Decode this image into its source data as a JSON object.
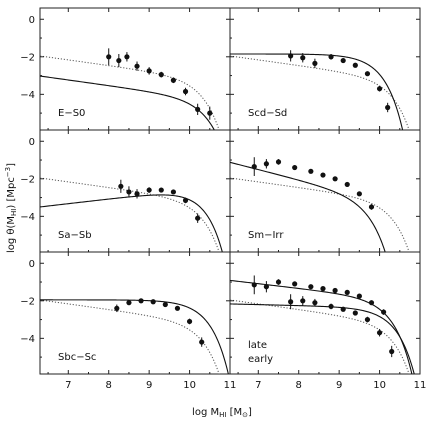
{
  "figure": {
    "xlabel": "log M",
    "xlabel_sub": "HI",
    "xlabel_unit_open": " [M",
    "xlabel_unit_sub": "⊙",
    "xlabel_unit_close": "]",
    "ylabel": "log θ(M",
    "ylabel_sub": "HI",
    "ylabel_rest": ") [Mpc",
    "ylabel_sup": "−3",
    "ylabel_close": "]"
  },
  "chart_data": [
    {
      "type": "scatter",
      "panel_label": "E−S0",
      "xlim": [
        6.3,
        11
      ],
      "ylim": [
        -5.9,
        0.6
      ],
      "xticks": [
        "7",
        "8",
        "9",
        "10",
        "11"
      ],
      "yticks": [
        "0",
        "−2",
        "−4"
      ],
      "points": [
        {
          "x": 8.0,
          "y": -2.0,
          "err": 0.45
        },
        {
          "x": 8.25,
          "y": -2.2,
          "err": 0.35
        },
        {
          "x": 8.45,
          "y": -2.0,
          "err": 0.25
        },
        {
          "x": 8.7,
          "y": -2.5,
          "err": 0.25
        },
        {
          "x": 9.0,
          "y": -2.75,
          "err": 0.2
        },
        {
          "x": 9.3,
          "y": -2.95,
          "err": 0.15
        },
        {
          "x": 9.6,
          "y": -3.25,
          "err": 0.15
        },
        {
          "x": 9.9,
          "y": -3.85,
          "err": 0.2
        },
        {
          "x": 10.2,
          "y": -4.8,
          "err": 0.3
        },
        {
          "x": 10.5,
          "y": -5.0,
          "err": 0.35
        }
      ],
      "fit": {
        "alpha": -1.3,
        "logphi": -4.15,
        "logm": 10.05,
        "xmin": 6.3,
        "xmax": 11
      },
      "reference": {
        "alpha": -1.3,
        "logphi": -3.05,
        "logm": 9.95,
        "xmin": 6.3,
        "xmax": 11
      }
    },
    {
      "type": "scatter",
      "panel_label": "Scd−Sd",
      "xlim": [
        6.3,
        11
      ],
      "ylim": [
        -5.9,
        0.6
      ],
      "xticks": [
        "7",
        "8",
        "9",
        "10",
        "11"
      ],
      "yticks": [
        "0",
        "−2",
        "−4"
      ],
      "points": [
        {
          "x": 7.8,
          "y": -1.95,
          "err": 0.3
        },
        {
          "x": 8.1,
          "y": -2.05,
          "err": 0.25
        },
        {
          "x": 8.4,
          "y": -2.35,
          "err": 0.25
        },
        {
          "x": 8.8,
          "y": -2.0,
          "err": 0.15
        },
        {
          "x": 9.1,
          "y": -2.2,
          "err": 0.12
        },
        {
          "x": 9.4,
          "y": -2.45,
          "err": 0.1
        },
        {
          "x": 9.7,
          "y": -2.9,
          "err": 0.12
        },
        {
          "x": 10.0,
          "y": -3.7,
          "err": 0.15
        },
        {
          "x": 10.2,
          "y": -4.7,
          "err": 0.25
        }
      ],
      "fit": {
        "alpha": -1.0,
        "logphi": -1.85,
        "logm": 9.6,
        "xmin": 6.3,
        "xmax": 11
      },
      "reference": {
        "alpha": -1.3,
        "logphi": -3.05,
        "logm": 9.95,
        "xmin": 6.3,
        "xmax": 11
      }
    },
    {
      "type": "scatter",
      "panel_label": "Sa−Sb",
      "xlim": [
        6.3,
        11
      ],
      "ylim": [
        -5.9,
        0.6
      ],
      "xticks": [
        "7",
        "8",
        "9",
        "10",
        "11"
      ],
      "yticks": [
        "0",
        "−2",
        "−4"
      ],
      "points": [
        {
          "x": 8.3,
          "y": -2.4,
          "err": 0.35
        },
        {
          "x": 8.5,
          "y": -2.7,
          "err": 0.3
        },
        {
          "x": 8.7,
          "y": -2.8,
          "err": 0.25
        },
        {
          "x": 9.0,
          "y": -2.6,
          "err": 0.15
        },
        {
          "x": 9.3,
          "y": -2.6,
          "err": 0.12
        },
        {
          "x": 9.6,
          "y": -2.7,
          "err": 0.12
        },
        {
          "x": 9.9,
          "y": -3.15,
          "err": 0.15
        },
        {
          "x": 10.2,
          "y": -4.1,
          "err": 0.25
        }
      ],
      "fit": {
        "alpha": -0.75,
        "logphi": -2.6,
        "logm": 9.9,
        "xmin": 6.3,
        "xmax": 11
      },
      "reference": {
        "alpha": -1.3,
        "logphi": -3.05,
        "logm": 9.95,
        "xmin": 6.3,
        "xmax": 11
      }
    },
    {
      "type": "scatter",
      "panel_label": "Sm−Irr",
      "xlim": [
        6.3,
        11
      ],
      "ylim": [
        -5.9,
        0.6
      ],
      "xticks": [
        "7",
        "8",
        "9",
        "10",
        "11"
      ],
      "yticks": [
        "0",
        "−2",
        "−4"
      ],
      "points": [
        {
          "x": 6.9,
          "y": -1.35,
          "err": 0.5
        },
        {
          "x": 7.2,
          "y": -1.2,
          "err": 0.25
        },
        {
          "x": 7.5,
          "y": -1.1,
          "err": 0.15
        },
        {
          "x": 7.9,
          "y": -1.4,
          "err": 0.12
        },
        {
          "x": 8.3,
          "y": -1.6,
          "err": 0.1
        },
        {
          "x": 8.6,
          "y": -1.8,
          "err": 0.1
        },
        {
          "x": 8.9,
          "y": -2.0,
          "err": 0.1
        },
        {
          "x": 9.2,
          "y": -2.3,
          "err": 0.1
        },
        {
          "x": 9.5,
          "y": -2.8,
          "err": 0.12
        },
        {
          "x": 9.8,
          "y": -3.5,
          "err": 0.15
        }
      ],
      "fit": {
        "alpha": -1.55,
        "logphi": -2.8,
        "logm": 9.35,
        "xmin": 6.3,
        "xmax": 11
      },
      "reference": {
        "alpha": -1.3,
        "logphi": -3.05,
        "logm": 9.95,
        "xmin": 6.3,
        "xmax": 11
      }
    },
    {
      "type": "scatter",
      "panel_label": "Sbc−Sc",
      "xlim": [
        6.3,
        11
      ],
      "ylim": [
        -5.9,
        0.6
      ],
      "xticks": [
        "7",
        "8",
        "9",
        "10",
        "11"
      ],
      "yticks": [
        "0",
        "−2",
        "−4"
      ],
      "points": [
        {
          "x": 8.2,
          "y": -2.4,
          "err": 0.2
        },
        {
          "x": 8.5,
          "y": -2.1,
          "err": 0.12
        },
        {
          "x": 8.8,
          "y": -2.0,
          "err": 0.12
        },
        {
          "x": 9.1,
          "y": -2.05,
          "err": 0.1
        },
        {
          "x": 9.4,
          "y": -2.2,
          "err": 0.1
        },
        {
          "x": 9.7,
          "y": -2.4,
          "err": 0.12
        },
        {
          "x": 10.0,
          "y": -3.1,
          "err": 0.15
        },
        {
          "x": 10.3,
          "y": -4.2,
          "err": 0.25
        }
      ],
      "fit": {
        "alpha": -1.0,
        "logphi": -1.95,
        "logm": 10.0,
        "xmin": 6.3,
        "xmax": 11
      },
      "reference": {
        "alpha": -1.3,
        "logphi": -3.05,
        "logm": 9.95,
        "xmin": 6.3,
        "xmax": 11
      }
    },
    {
      "type": "scatter",
      "panel_label": "late",
      "panel_label_2": "early",
      "xlim": [
        6.3,
        11
      ],
      "ylim": [
        -5.9,
        0.6
      ],
      "xticks": [
        "7",
        "8",
        "9",
        "10",
        "11"
      ],
      "yticks": [
        "0",
        "−2",
        "−4"
      ],
      "series": [
        {
          "name": "late",
          "points": [
            {
              "x": 6.9,
              "y": -1.15,
              "err": 0.5
            },
            {
              "x": 7.2,
              "y": -1.25,
              "err": 0.3
            },
            {
              "x": 7.5,
              "y": -1.0,
              "err": 0.15
            },
            {
              "x": 7.9,
              "y": -1.1,
              "err": 0.12
            },
            {
              "x": 8.3,
              "y": -1.25,
              "err": 0.1
            },
            {
              "x": 8.6,
              "y": -1.35,
              "err": 0.1
            },
            {
              "x": 8.9,
              "y": -1.45,
              "err": 0.1
            },
            {
              "x": 9.2,
              "y": -1.55,
              "err": 0.1
            },
            {
              "x": 9.5,
              "y": -1.75,
              "err": 0.1
            },
            {
              "x": 9.8,
              "y": -2.1,
              "err": 0.12
            },
            {
              "x": 10.1,
              "y": -2.6,
              "err": 0.15
            }
          ],
          "fit": {
            "alpha": -1.25,
            "logphi": -1.8,
            "logm": 9.85,
            "xmin": 6.3,
            "xmax": 11
          }
        },
        {
          "name": "early",
          "points": [
            {
              "x": 7.8,
              "y": -2.05,
              "err": 0.4
            },
            {
              "x": 8.1,
              "y": -2.0,
              "err": 0.25
            },
            {
              "x": 8.4,
              "y": -2.1,
              "err": 0.2
            },
            {
              "x": 8.8,
              "y": -2.3,
              "err": 0.15
            },
            {
              "x": 9.1,
              "y": -2.45,
              "err": 0.12
            },
            {
              "x": 9.4,
              "y": -2.65,
              "err": 0.12
            },
            {
              "x": 9.7,
              "y": -3.0,
              "err": 0.15
            },
            {
              "x": 10.0,
              "y": -3.7,
              "err": 0.2
            },
            {
              "x": 10.3,
              "y": -4.7,
              "err": 0.3
            }
          ],
          "fit": {
            "alpha": -1.05,
            "logphi": -2.35,
            "logm": 9.95,
            "xmin": 6.3,
            "xmax": 11
          }
        }
      ],
      "reference": {
        "alpha": -1.3,
        "logphi": -3.05,
        "logm": 9.95,
        "xmin": 6.3,
        "xmax": 11
      }
    }
  ]
}
